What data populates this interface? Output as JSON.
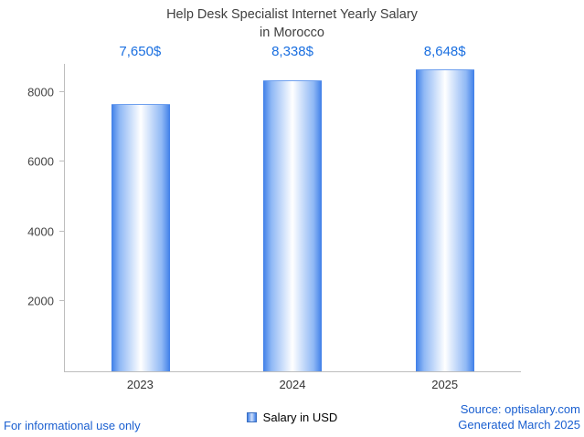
{
  "chart_data": {
    "type": "bar",
    "title": "Help Desk Specialist Internet Yearly Salary in Morocco",
    "title_lines": [
      "Help Desk Specialist Internet Yearly Salary",
      "in Morocco"
    ],
    "categories": [
      "2023",
      "2024",
      "2025"
    ],
    "values": [
      7650,
      8338,
      8648
    ],
    "value_labels": [
      "7,650$",
      "8,338$",
      "8,648$"
    ],
    "series_name": "Salary in USD",
    "xlabel": "",
    "ylabel": "",
    "yticks": [
      2000,
      4000,
      6000,
      8000
    ],
    "ylim": [
      0,
      8800
    ],
    "grid": false,
    "legend_position": "bottom",
    "colors": {
      "bar_edge": "#3f7fe8",
      "bar_center": "#ffffff",
      "value_label": "#1a6fe0",
      "axis": "#bdbdbd",
      "title": "#404040",
      "footer_link": "#1a5fd0"
    }
  },
  "legend": {
    "label": "Salary in USD"
  },
  "footer": {
    "disclaimer": "For informational use only",
    "source": "Source: optisalary.com",
    "generated": "Generated March 2025"
  }
}
